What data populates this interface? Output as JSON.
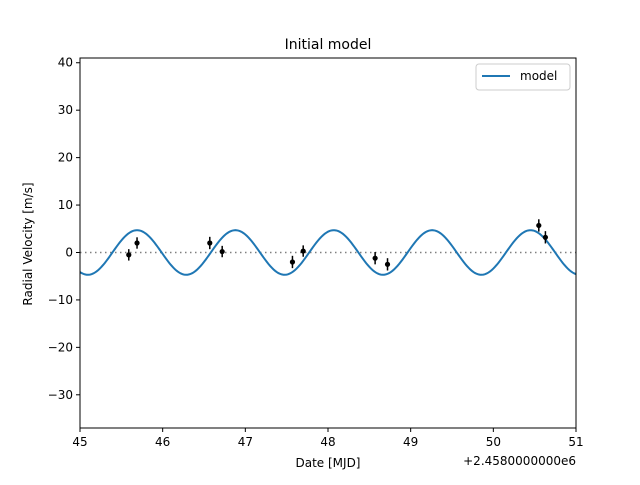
{
  "chart_data": {
    "type": "scatter",
    "title": "Initial model",
    "xlabel": "Date [MJD]",
    "ylabel": "Radial Velocity [m/s]",
    "x_offset_text": "+2.4580000000e6",
    "xlim": [
      45,
      51
    ],
    "ylim": [
      -37,
      41
    ],
    "x_ticks": [
      45,
      46,
      47,
      48,
      49,
      50,
      51
    ],
    "y_ticks": [
      -30,
      -20,
      -10,
      0,
      10,
      20,
      30,
      40
    ],
    "zero_line": 0,
    "legend": {
      "placement": "top-right",
      "entries": [
        "model"
      ]
    },
    "colors": {
      "model": "#1f77b4",
      "data": "#000000",
      "zero_line": "#808080"
    },
    "series": [
      {
        "name": "model",
        "kind": "line",
        "function": "sinusoid",
        "amplitude": 4.7,
        "period": 1.19,
        "peak_x": 45.69
      },
      {
        "kind": "errorbar",
        "x": [
          45.59,
          45.69,
          46.57,
          46.72,
          47.57,
          47.7,
          48.57,
          48.72,
          50.55,
          50.63
        ],
        "y": [
          -0.5,
          2.0,
          2.0,
          0.2,
          -2.0,
          0.3,
          -1.2,
          -2.5,
          5.7,
          3.2
        ],
        "yerr": [
          1.2,
          1.2,
          1.3,
          1.2,
          1.3,
          1.2,
          1.3,
          1.3,
          1.3,
          1.3
        ]
      }
    ]
  }
}
